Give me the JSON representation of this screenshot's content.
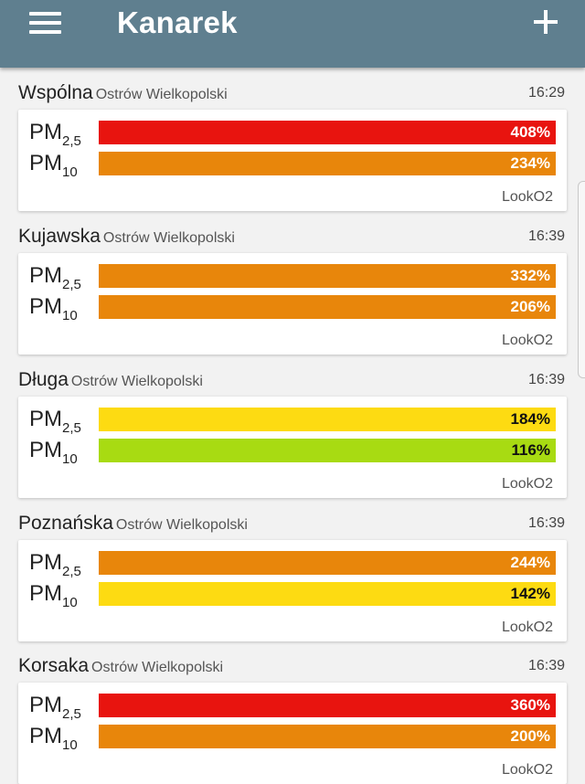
{
  "app": {
    "title": "Kanarek"
  },
  "colors": {
    "appbar": "#5f7f8f",
    "red": "#e8140f",
    "orange": "#e8860b",
    "yellow": "#fddb12",
    "lime": "#a8db12"
  },
  "pm25_label": "PM",
  "pm25_sub": "2,5",
  "pm10_label": "PM",
  "pm10_sub": "10",
  "stations": [
    {
      "street": "Wspólna",
      "city": "Ostrów Wielkopolski",
      "time": "16:29",
      "pm25": "408%",
      "pm10": "234%",
      "pm25_color": "red",
      "pm10_color": "orange",
      "source": "LookO2"
    },
    {
      "street": "Kujawska",
      "city": "Ostrów Wielkopolski",
      "time": "16:39",
      "pm25": "332%",
      "pm10": "206%",
      "pm25_color": "orange",
      "pm10_color": "orange",
      "source": "LookO2"
    },
    {
      "street": "Długa",
      "city": "Ostrów Wielkopolski",
      "time": "16:39",
      "pm25": "184%",
      "pm10": "116%",
      "pm25_color": "yellow",
      "pm10_color": "lime",
      "source": "LookO2"
    },
    {
      "street": "Poznańska",
      "city": "Ostrów Wielkopolski",
      "time": "16:39",
      "pm25": "244%",
      "pm10": "142%",
      "pm25_color": "orange",
      "pm10_color": "yellow",
      "source": "LookO2"
    },
    {
      "street": "Korsaka",
      "city": "Ostrów Wielkopolski",
      "time": "16:39",
      "pm25": "360%",
      "pm10": "200%",
      "pm25_color": "red",
      "pm10_color": "orange",
      "source": "LookO2"
    }
  ]
}
